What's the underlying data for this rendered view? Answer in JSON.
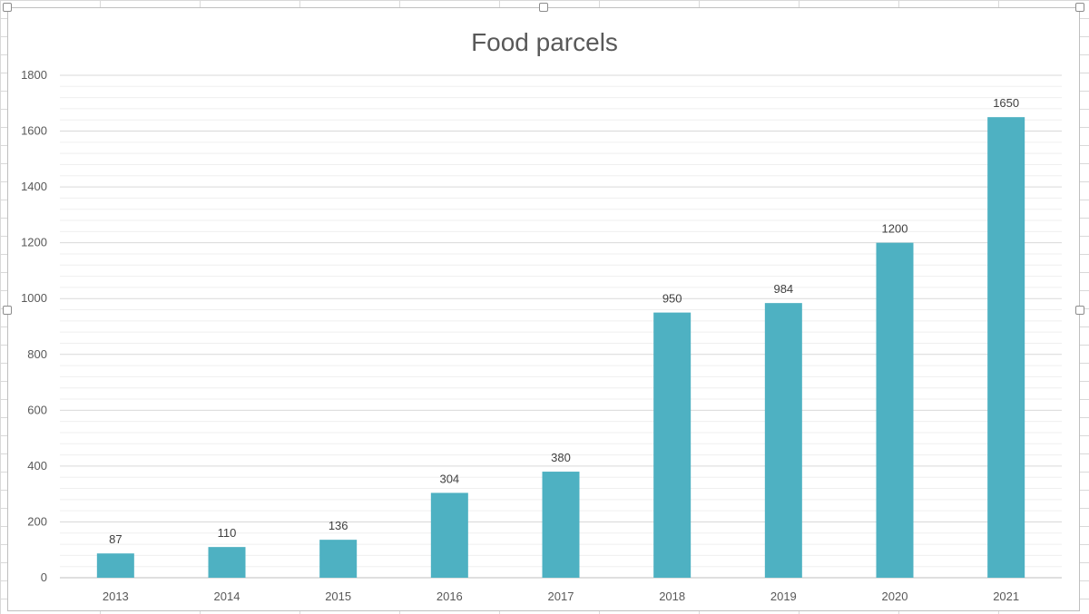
{
  "chart_data": {
    "type": "bar",
    "title": "Food parcels",
    "categories": [
      "2013",
      "2014",
      "2015",
      "2016",
      "2017",
      "2018",
      "2019",
      "2020",
      "2021"
    ],
    "values": [
      87,
      110,
      136,
      304,
      380,
      950,
      984,
      1200,
      1650
    ],
    "data_labels": [
      "87",
      "110",
      "136",
      "304",
      "380",
      "950",
      "984",
      "1200",
      "1650"
    ],
    "ylim": [
      0,
      1800
    ],
    "yticks": [
      "0",
      "200",
      "400",
      "600",
      "800",
      "1000",
      "1200",
      "1400",
      "1600",
      "1800"
    ],
    "xlabel": "",
    "ylabel": "",
    "grid": true,
    "minor_grid": true,
    "legend": "none",
    "colors": {
      "bar": "#4eb1c2",
      "grid_major": "#d9d9d9",
      "grid_minor": "#efefef",
      "axis": "#bfbfbf"
    }
  }
}
